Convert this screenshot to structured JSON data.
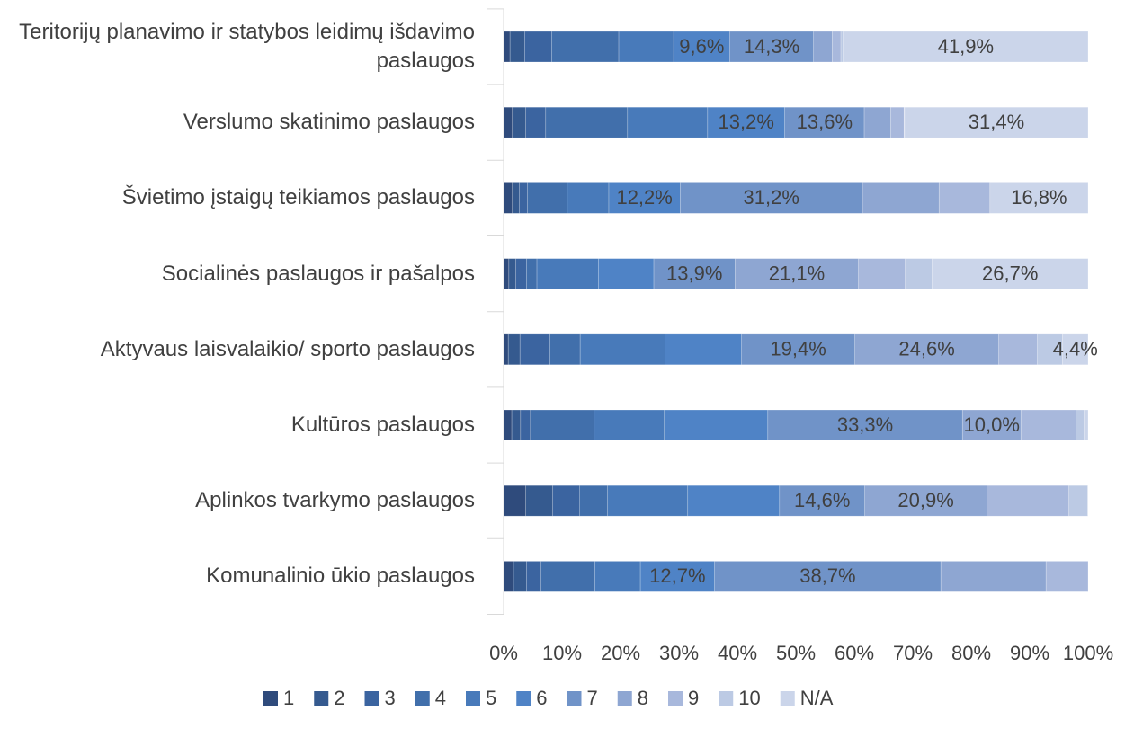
{
  "chart_data": {
    "type": "bar",
    "orientation": "horizontal",
    "stacked": true,
    "categories": [
      "Teritorijų planavimo ir statybos leidimų išdavimo paslaugos",
      "Verslumo skatinimo paslaugos",
      "Švietimo įstaigų teikiamos paslaugos",
      "Socialinės paslaugos ir pašalpos",
      "Aktyvaus laisvalaikio/ sporto paslaugos",
      "Kultūros paslaugos",
      "Aplinkos tvarkymo paslaugos",
      "Komunalinio ūkio paslaugos"
    ],
    "series": [
      {
        "name": "1",
        "color": "#2f4b7c",
        "values": [
          1.1,
          1.5,
          1.5,
          0.9,
          0.8,
          1.4,
          3.8,
          1.7
        ]
      },
      {
        "name": "2",
        "color": "#355a8f",
        "values": [
          2.5,
          2.3,
          1.2,
          1.2,
          2.0,
          1.5,
          4.6,
          2.2
        ]
      },
      {
        "name": "3",
        "color": "#3b64a0",
        "values": [
          4.6,
          3.4,
          1.4,
          1.8,
          5.1,
          1.7,
          4.6,
          2.5
        ]
      },
      {
        "name": "4",
        "color": "#416fab",
        "values": [
          11.5,
          14.0,
          6.8,
          1.8,
          5.2,
          10.9,
          4.8,
          9.2
        ]
      },
      {
        "name": "5",
        "color": "#487aba",
        "values": [
          9.4,
          13.7,
          7.1,
          10.5,
          14.5,
          12.0,
          13.7,
          7.8
        ]
      },
      {
        "name": "6",
        "color": "#4f83c6",
        "values": [
          9.6,
          13.2,
          12.2,
          9.5,
          13.1,
          17.7,
          15.7,
          12.7
        ],
        "value_labels": [
          "9,6%",
          "13,2%",
          "12,2%",
          null,
          null,
          null,
          null,
          "12,7%"
        ]
      },
      {
        "name": "7",
        "color": "#7093c8",
        "values": [
          14.3,
          13.6,
          31.2,
          13.9,
          19.4,
          33.3,
          14.6,
          38.7
        ],
        "value_labels": [
          "14,3%",
          "13,6%",
          "31,2%",
          "13,9%",
          "19,4%",
          "33,3%",
          "14,6%",
          "38,7%"
        ]
      },
      {
        "name": "8",
        "color": "#8ea6d2",
        "values": [
          3.2,
          4.5,
          13.1,
          21.1,
          24.6,
          10.0,
          20.9,
          18.0
        ],
        "value_labels": [
          null,
          null,
          null,
          "21,1%",
          "24,6%",
          "10,0%",
          "20,9%",
          null
        ]
      },
      {
        "name": "9",
        "color": "#a8b8dc",
        "values": [
          1.5,
          2.3,
          8.7,
          8.0,
          6.6,
          9.4,
          14.0,
          7.2
        ]
      },
      {
        "name": "10",
        "color": "#bccae4",
        "values": [
          0.4,
          0.1,
          0,
          4.6,
          4.3,
          1.4,
          3.2,
          0
        ]
      },
      {
        "name": "N/A",
        "color": "#cbd5ea",
        "values": [
          41.9,
          31.4,
          16.8,
          26.7,
          4.4,
          0.7,
          0.1,
          0
        ],
        "value_labels": [
          "41,9%",
          "31,4%",
          "16,8%",
          "26,7%",
          "4,4%",
          null,
          null,
          null
        ]
      }
    ],
    "xlim": [
      0,
      100
    ],
    "xticks": [
      {
        "value": 0,
        "label": "0%"
      },
      {
        "value": 10,
        "label": "10%"
      },
      {
        "value": 20,
        "label": "20%"
      },
      {
        "value": 30,
        "label": "30%"
      },
      {
        "value": 40,
        "label": "40%"
      },
      {
        "value": 50,
        "label": "50%"
      },
      {
        "value": 60,
        "label": "60%"
      },
      {
        "value": 70,
        "label": "70%"
      },
      {
        "value": 80,
        "label": "80%"
      },
      {
        "value": 90,
        "label": "90%"
      },
      {
        "value": 100,
        "label": "100%"
      }
    ],
    "legend": "bottom",
    "grid": false
  }
}
